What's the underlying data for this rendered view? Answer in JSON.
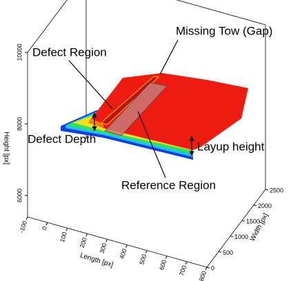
{
  "chart_data": {
    "type": "surface3d",
    "xlabel": "Length [px]",
    "ylabel": "Width [px]",
    "zlabel": "Height [px]",
    "xlim": [
      -100,
      800
    ],
    "xticks": [
      -100,
      0,
      100,
      200,
      300,
      400,
      500,
      600,
      700,
      800
    ],
    "ylim": [
      0,
      2500
    ],
    "yticks": [
      0,
      500,
      1000,
      1500,
      2000,
      2500
    ],
    "zlim": [
      5400,
      10000
    ],
    "zticks": [
      6000,
      8000,
      10000
    ],
    "annotations": [
      "Missing Tow (Gap)",
      "Defect Region",
      "Defect Depth",
      "Layup height",
      "Reference Region"
    ]
  }
}
